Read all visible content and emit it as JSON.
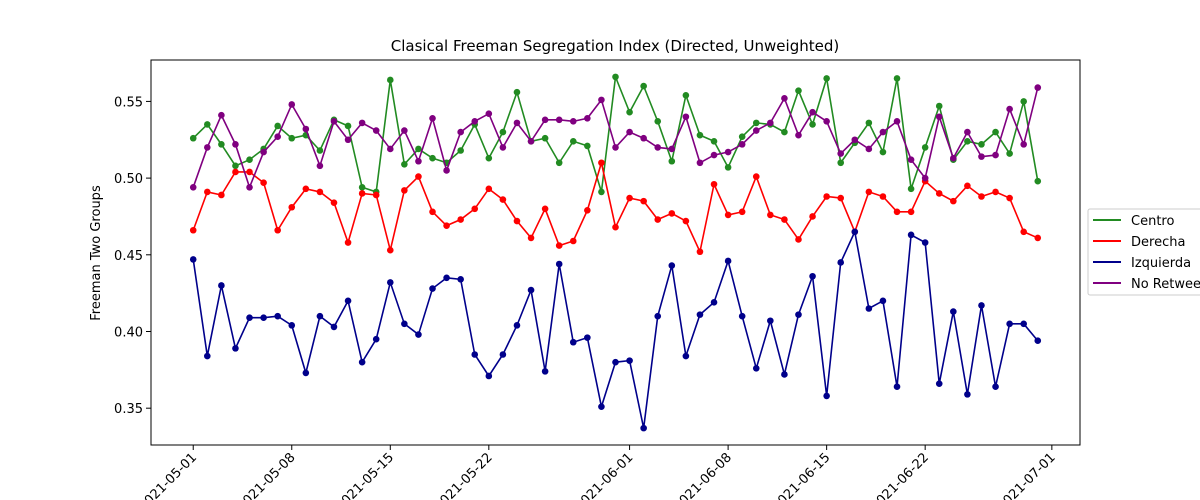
{
  "chart_data": {
    "type": "line",
    "title": "Clasical Freeman Segregation Index (Directed, Unweighted)",
    "xlabel": "",
    "ylabel": "Freeman Two Groups",
    "x_start": "2021-05-01",
    "x_end": "2021-06-30",
    "xlim": [
      "2021-04-28",
      "2021-07-03"
    ],
    "ylim": [
      0.326,
      0.577
    ],
    "x_tick_labels": [
      "2021-05-01",
      "2021-05-08",
      "2021-05-15",
      "2021-05-22",
      "2021-06-01",
      "2021-06-08",
      "2021-06-15",
      "2021-06-22",
      "2021-07-01"
    ],
    "y_ticks": [
      0.35,
      0.4,
      0.45,
      0.5,
      0.55
    ],
    "y_tick_labels": [
      "0.35",
      "0.40",
      "0.45",
      "0.50",
      "0.55"
    ],
    "legend_position": "center-right",
    "grid": false,
    "series": [
      {
        "name": "Centro",
        "color": "#228b22",
        "values": [
          0.526,
          0.535,
          0.522,
          0.508,
          0.512,
          0.519,
          0.534,
          0.526,
          0.528,
          0.518,
          0.538,
          0.534,
          0.494,
          0.491,
          0.564,
          0.509,
          0.519,
          0.513,
          0.51,
          0.518,
          0.535,
          0.513,
          0.53,
          0.556,
          0.524,
          0.526,
          0.51,
          0.524,
          0.521,
          0.491,
          0.566,
          0.543,
          0.56,
          0.537,
          0.511,
          0.554,
          0.528,
          0.524,
          0.507,
          0.527,
          0.536,
          0.535,
          0.53,
          0.557,
          0.535,
          0.565,
          0.51,
          0.523,
          0.536,
          0.517,
          0.565,
          0.493,
          0.52,
          0.547,
          0.512,
          0.524,
          0.522,
          0.53,
          0.516,
          0.55,
          0.498
        ]
      },
      {
        "name": "Derecha",
        "color": "#ff0000",
        "values": [
          0.466,
          0.491,
          0.489,
          0.504,
          0.504,
          0.497,
          0.466,
          0.481,
          0.493,
          0.491,
          0.484,
          0.458,
          0.49,
          0.489,
          0.453,
          0.492,
          0.501,
          0.478,
          0.469,
          0.473,
          0.48,
          0.493,
          0.486,
          0.472,
          0.461,
          0.48,
          0.456,
          0.459,
          0.479,
          0.51,
          0.468,
          0.487,
          0.485,
          0.473,
          0.477,
          0.472,
          0.452,
          0.496,
          0.476,
          0.478,
          0.501,
          0.476,
          0.473,
          0.46,
          0.475,
          0.488,
          0.487,
          0.465,
          0.491,
          0.488,
          0.478,
          0.478,
          0.498,
          0.49,
          0.485,
          0.495,
          0.488,
          0.491,
          0.487,
          0.465,
          0.461
        ]
      },
      {
        "name": "Izquierda",
        "color": "#00008b",
        "values": [
          0.447,
          0.384,
          0.43,
          0.389,
          0.409,
          0.409,
          0.41,
          0.404,
          0.373,
          0.41,
          0.403,
          0.42,
          0.38,
          0.395,
          0.432,
          0.405,
          0.398,
          0.428,
          0.435,
          0.434,
          0.385,
          0.371,
          0.385,
          0.404,
          0.427,
          0.374,
          0.444,
          0.393,
          0.396,
          0.351,
          0.38,
          0.381,
          0.337,
          0.41,
          0.443,
          0.384,
          0.411,
          0.419,
          0.446,
          0.41,
          0.376,
          0.407,
          0.372,
          0.411,
          0.436,
          0.358,
          0.445,
          0.465,
          0.415,
          0.42,
          0.364,
          0.463,
          0.458,
          0.366,
          0.413,
          0.359,
          0.417,
          0.364,
          0.405,
          0.405,
          0.394
        ]
      },
      {
        "name": "No Retweet",
        "color": "#800080",
        "values": [
          0.494,
          0.52,
          0.541,
          0.522,
          0.494,
          0.517,
          0.527,
          0.548,
          0.532,
          0.508,
          0.537,
          0.525,
          0.536,
          0.531,
          0.519,
          0.531,
          0.511,
          0.539,
          0.505,
          0.53,
          0.537,
          0.542,
          0.52,
          0.536,
          0.524,
          0.538,
          0.538,
          0.537,
          0.539,
          0.551,
          0.52,
          0.53,
          0.526,
          0.52,
          0.519,
          0.54,
          0.51,
          0.515,
          0.517,
          0.522,
          0.531,
          0.536,
          0.552,
          0.528,
          0.543,
          0.537,
          0.516,
          0.525,
          0.519,
          0.53,
          0.537,
          0.512,
          0.5,
          0.54,
          0.513,
          0.53,
          0.514,
          0.515,
          0.545,
          0.522,
          0.559
        ]
      }
    ]
  }
}
